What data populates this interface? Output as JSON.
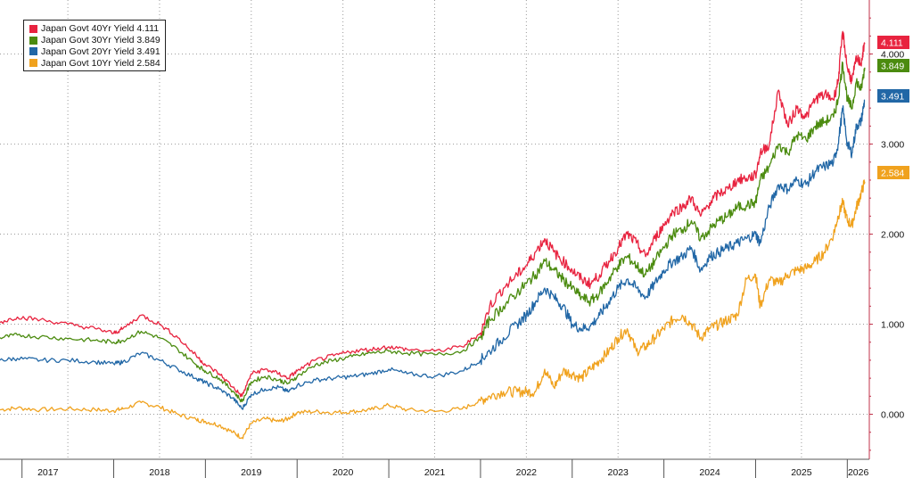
{
  "chart_data": {
    "type": "line",
    "title": "",
    "xlabel": "",
    "ylabel": "",
    "xlim": [
      2016.76,
      2026.24
    ],
    "ylim": [
      -0.5,
      4.6
    ],
    "grid": true,
    "legend_position": "top-left",
    "x_ticks": [
      "2017",
      "2018",
      "2019",
      "2020",
      "2021",
      "2022",
      "2023",
      "2024",
      "2025",
      "2026"
    ],
    "y_ticks": [
      "0.000",
      "1.000",
      "2.000",
      "3.000",
      "4.000"
    ],
    "y_tick_values": [
      0,
      1,
      2,
      3,
      4
    ],
    "series": [
      {
        "name": "Japan Govt 40Yr Yield",
        "last": "4.111",
        "color": "#e8233f",
        "points": [
          [
            2016.76,
            1.02
          ],
          [
            2016.95,
            1.08
          ],
          [
            2017.2,
            1.05
          ],
          [
            2017.5,
            1.0
          ],
          [
            2017.8,
            0.95
          ],
          [
            2018.0,
            0.9
          ],
          [
            2018.1,
            0.95
          ],
          [
            2018.3,
            1.1
          ],
          [
            2018.5,
            1.0
          ],
          [
            2018.7,
            0.85
          ],
          [
            2018.9,
            0.65
          ],
          [
            2019.0,
            0.55
          ],
          [
            2019.15,
            0.45
          ],
          [
            2019.3,
            0.3
          ],
          [
            2019.4,
            0.2
          ],
          [
            2019.5,
            0.45
          ],
          [
            2019.65,
            0.5
          ],
          [
            2019.8,
            0.45
          ],
          [
            2019.9,
            0.4
          ],
          [
            2020.0,
            0.48
          ],
          [
            2020.2,
            0.6
          ],
          [
            2020.4,
            0.65
          ],
          [
            2020.6,
            0.7
          ],
          [
            2020.8,
            0.72
          ],
          [
            2021.0,
            0.75
          ],
          [
            2021.2,
            0.72
          ],
          [
            2021.5,
            0.7
          ],
          [
            2021.8,
            0.75
          ],
          [
            2022.0,
            0.9
          ],
          [
            2022.1,
            1.2
          ],
          [
            2022.25,
            1.4
          ],
          [
            2022.4,
            1.55
          ],
          [
            2022.5,
            1.65
          ],
          [
            2022.6,
            1.8
          ],
          [
            2022.7,
            1.95
          ],
          [
            2022.8,
            1.8
          ],
          [
            2022.9,
            1.7
          ],
          [
            2023.0,
            1.6
          ],
          [
            2023.1,
            1.5
          ],
          [
            2023.2,
            1.45
          ],
          [
            2023.3,
            1.55
          ],
          [
            2023.4,
            1.7
          ],
          [
            2023.5,
            1.85
          ],
          [
            2023.6,
            2.0
          ],
          [
            2023.7,
            1.9
          ],
          [
            2023.8,
            1.75
          ],
          [
            2023.9,
            1.95
          ],
          [
            2024.0,
            2.1
          ],
          [
            2024.1,
            2.25
          ],
          [
            2024.2,
            2.3
          ],
          [
            2024.3,
            2.4
          ],
          [
            2024.4,
            2.2
          ],
          [
            2024.5,
            2.35
          ],
          [
            2024.6,
            2.45
          ],
          [
            2024.7,
            2.5
          ],
          [
            2024.8,
            2.6
          ],
          [
            2024.9,
            2.62
          ],
          [
            2025.0,
            2.65
          ],
          [
            2025.05,
            2.9
          ],
          [
            2025.15,
            3.0
          ],
          [
            2025.25,
            3.6
          ],
          [
            2025.35,
            3.2
          ],
          [
            2025.45,
            3.4
          ],
          [
            2025.55,
            3.3
          ],
          [
            2025.65,
            3.5
          ],
          [
            2025.75,
            3.55
          ],
          [
            2025.85,
            3.5
          ],
          [
            2025.9,
            3.7
          ],
          [
            2025.95,
            4.25
          ],
          [
            2026.0,
            3.85
          ],
          [
            2026.05,
            3.7
          ],
          [
            2026.1,
            3.95
          ],
          [
            2026.15,
            3.9
          ],
          [
            2026.19,
            4.111
          ]
        ]
      },
      {
        "name": "Japan Govt 30Yr Yield",
        "last": "3.849",
        "color": "#4b8b0f",
        "points": [
          [
            2016.76,
            0.85
          ],
          [
            2016.95,
            0.88
          ],
          [
            2017.2,
            0.86
          ],
          [
            2017.5,
            0.84
          ],
          [
            2017.8,
            0.82
          ],
          [
            2018.0,
            0.8
          ],
          [
            2018.1,
            0.82
          ],
          [
            2018.3,
            0.92
          ],
          [
            2018.5,
            0.85
          ],
          [
            2018.7,
            0.72
          ],
          [
            2018.9,
            0.55
          ],
          [
            2019.0,
            0.48
          ],
          [
            2019.15,
            0.4
          ],
          [
            2019.3,
            0.26
          ],
          [
            2019.4,
            0.14
          ],
          [
            2019.5,
            0.36
          ],
          [
            2019.65,
            0.42
          ],
          [
            2019.8,
            0.38
          ],
          [
            2019.9,
            0.34
          ],
          [
            2020.0,
            0.42
          ],
          [
            2020.2,
            0.55
          ],
          [
            2020.4,
            0.6
          ],
          [
            2020.6,
            0.64
          ],
          [
            2020.8,
            0.68
          ],
          [
            2021.0,
            0.7
          ],
          [
            2021.2,
            0.68
          ],
          [
            2021.5,
            0.66
          ],
          [
            2021.8,
            0.7
          ],
          [
            2022.0,
            0.85
          ],
          [
            2022.1,
            1.05
          ],
          [
            2022.25,
            1.2
          ],
          [
            2022.4,
            1.35
          ],
          [
            2022.5,
            1.45
          ],
          [
            2022.6,
            1.55
          ],
          [
            2022.7,
            1.7
          ],
          [
            2022.8,
            1.6
          ],
          [
            2022.9,
            1.5
          ],
          [
            2023.0,
            1.4
          ],
          [
            2023.1,
            1.3
          ],
          [
            2023.2,
            1.25
          ],
          [
            2023.3,
            1.35
          ],
          [
            2023.4,
            1.5
          ],
          [
            2023.5,
            1.65
          ],
          [
            2023.6,
            1.75
          ],
          [
            2023.7,
            1.65
          ],
          [
            2023.8,
            1.55
          ],
          [
            2023.9,
            1.7
          ],
          [
            2024.0,
            1.85
          ],
          [
            2024.1,
            2.0
          ],
          [
            2024.2,
            2.05
          ],
          [
            2024.3,
            2.15
          ],
          [
            2024.4,
            1.95
          ],
          [
            2024.5,
            2.05
          ],
          [
            2024.6,
            2.15
          ],
          [
            2024.7,
            2.2
          ],
          [
            2024.8,
            2.3
          ],
          [
            2024.9,
            2.32
          ],
          [
            2025.0,
            2.35
          ],
          [
            2025.05,
            2.6
          ],
          [
            2025.15,
            2.75
          ],
          [
            2025.25,
            3.0
          ],
          [
            2025.35,
            2.9
          ],
          [
            2025.45,
            3.1
          ],
          [
            2025.55,
            3.05
          ],
          [
            2025.65,
            3.2
          ],
          [
            2025.75,
            3.25
          ],
          [
            2025.85,
            3.3
          ],
          [
            2025.9,
            3.5
          ],
          [
            2025.95,
            3.9
          ],
          [
            2026.0,
            3.5
          ],
          [
            2026.05,
            3.4
          ],
          [
            2026.1,
            3.7
          ],
          [
            2026.15,
            3.6
          ],
          [
            2026.19,
            3.849
          ]
        ]
      },
      {
        "name": "Japan Govt 20Yr Yield",
        "last": "3.491",
        "color": "#2167a6",
        "points": [
          [
            2016.76,
            0.6
          ],
          [
            2016.95,
            0.62
          ],
          [
            2017.2,
            0.6
          ],
          [
            2017.5,
            0.6
          ],
          [
            2017.8,
            0.58
          ],
          [
            2018.0,
            0.56
          ],
          [
            2018.1,
            0.58
          ],
          [
            2018.3,
            0.68
          ],
          [
            2018.5,
            0.6
          ],
          [
            2018.7,
            0.5
          ],
          [
            2018.9,
            0.4
          ],
          [
            2019.0,
            0.35
          ],
          [
            2019.15,
            0.28
          ],
          [
            2019.3,
            0.18
          ],
          [
            2019.4,
            0.06
          ],
          [
            2019.5,
            0.22
          ],
          [
            2019.65,
            0.28
          ],
          [
            2019.8,
            0.3
          ],
          [
            2019.9,
            0.25
          ],
          [
            2020.0,
            0.32
          ],
          [
            2020.2,
            0.38
          ],
          [
            2020.4,
            0.4
          ],
          [
            2020.6,
            0.42
          ],
          [
            2020.8,
            0.45
          ],
          [
            2021.0,
            0.5
          ],
          [
            2021.2,
            0.45
          ],
          [
            2021.5,
            0.42
          ],
          [
            2021.8,
            0.48
          ],
          [
            2022.0,
            0.6
          ],
          [
            2022.1,
            0.7
          ],
          [
            2022.25,
            0.85
          ],
          [
            2022.4,
            1.0
          ],
          [
            2022.5,
            1.1
          ],
          [
            2022.6,
            1.25
          ],
          [
            2022.7,
            1.4
          ],
          [
            2022.8,
            1.3
          ],
          [
            2022.9,
            1.2
          ],
          [
            2023.0,
            1.0
          ],
          [
            2023.1,
            0.95
          ],
          [
            2023.2,
            0.98
          ],
          [
            2023.3,
            1.1
          ],
          [
            2023.4,
            1.25
          ],
          [
            2023.5,
            1.4
          ],
          [
            2023.6,
            1.5
          ],
          [
            2023.7,
            1.4
          ],
          [
            2023.8,
            1.3
          ],
          [
            2023.9,
            1.45
          ],
          [
            2024.0,
            1.6
          ],
          [
            2024.1,
            1.7
          ],
          [
            2024.2,
            1.75
          ],
          [
            2024.3,
            1.85
          ],
          [
            2024.4,
            1.6
          ],
          [
            2024.5,
            1.75
          ],
          [
            2024.6,
            1.8
          ],
          [
            2024.7,
            1.85
          ],
          [
            2024.8,
            1.9
          ],
          [
            2024.9,
            1.95
          ],
          [
            2025.0,
            2.0
          ],
          [
            2025.05,
            1.9
          ],
          [
            2025.15,
            2.3
          ],
          [
            2025.25,
            2.55
          ],
          [
            2025.35,
            2.5
          ],
          [
            2025.45,
            2.6
          ],
          [
            2025.55,
            2.55
          ],
          [
            2025.65,
            2.7
          ],
          [
            2025.75,
            2.75
          ],
          [
            2025.85,
            2.8
          ],
          [
            2025.9,
            3.0
          ],
          [
            2025.95,
            3.4
          ],
          [
            2026.0,
            3.0
          ],
          [
            2026.05,
            2.9
          ],
          [
            2026.1,
            3.2
          ],
          [
            2026.15,
            3.25
          ],
          [
            2026.19,
            3.491
          ]
        ]
      },
      {
        "name": "Japan Govt 10Yr Yield",
        "last": "2.584",
        "color": "#f0a21e",
        "points": [
          [
            2016.76,
            0.05
          ],
          [
            2016.95,
            0.07
          ],
          [
            2017.2,
            0.05
          ],
          [
            2017.5,
            0.06
          ],
          [
            2017.8,
            0.05
          ],
          [
            2018.0,
            0.04
          ],
          [
            2018.1,
            0.06
          ],
          [
            2018.3,
            0.13
          ],
          [
            2018.5,
            0.08
          ],
          [
            2018.7,
            0.0
          ],
          [
            2018.9,
            -0.06
          ],
          [
            2019.0,
            -0.08
          ],
          [
            2019.15,
            -0.12
          ],
          [
            2019.3,
            -0.2
          ],
          [
            2019.4,
            -0.26
          ],
          [
            2019.5,
            -0.1
          ],
          [
            2019.65,
            -0.05
          ],
          [
            2019.8,
            -0.08
          ],
          [
            2019.9,
            -0.05
          ],
          [
            2020.0,
            0.02
          ],
          [
            2020.2,
            0.03
          ],
          [
            2020.4,
            0.02
          ],
          [
            2020.6,
            0.03
          ],
          [
            2020.8,
            0.05
          ],
          [
            2021.0,
            0.1
          ],
          [
            2021.2,
            0.05
          ],
          [
            2021.5,
            0.03
          ],
          [
            2021.8,
            0.06
          ],
          [
            2022.0,
            0.15
          ],
          [
            2022.1,
            0.2
          ],
          [
            2022.25,
            0.25
          ],
          [
            2022.4,
            0.25
          ],
          [
            2022.5,
            0.25
          ],
          [
            2022.6,
            0.25
          ],
          [
            2022.7,
            0.5
          ],
          [
            2022.8,
            0.3
          ],
          [
            2022.9,
            0.48
          ],
          [
            2023.0,
            0.45
          ],
          [
            2023.1,
            0.4
          ],
          [
            2023.2,
            0.5
          ],
          [
            2023.3,
            0.6
          ],
          [
            2023.4,
            0.7
          ],
          [
            2023.5,
            0.85
          ],
          [
            2023.6,
            0.95
          ],
          [
            2023.7,
            0.7
          ],
          [
            2023.8,
            0.75
          ],
          [
            2023.9,
            0.85
          ],
          [
            2024.0,
            0.95
          ],
          [
            2024.1,
            1.05
          ],
          [
            2024.2,
            1.1
          ],
          [
            2024.3,
            1.0
          ],
          [
            2024.4,
            0.85
          ],
          [
            2024.5,
            0.95
          ],
          [
            2024.6,
            1.0
          ],
          [
            2024.7,
            1.05
          ],
          [
            2024.8,
            1.1
          ],
          [
            2024.9,
            1.5
          ],
          [
            2025.0,
            1.55
          ],
          [
            2025.05,
            1.2
          ],
          [
            2025.15,
            1.5
          ],
          [
            2025.25,
            1.45
          ],
          [
            2025.35,
            1.55
          ],
          [
            2025.45,
            1.6
          ],
          [
            2025.55,
            1.62
          ],
          [
            2025.65,
            1.7
          ],
          [
            2025.75,
            1.8
          ],
          [
            2025.85,
            2.0
          ],
          [
            2025.9,
            2.2
          ],
          [
            2025.95,
            2.35
          ],
          [
            2026.0,
            2.15
          ],
          [
            2026.05,
            2.1
          ],
          [
            2026.1,
            2.3
          ],
          [
            2026.15,
            2.45
          ],
          [
            2026.19,
            2.584
          ]
        ]
      }
    ]
  }
}
